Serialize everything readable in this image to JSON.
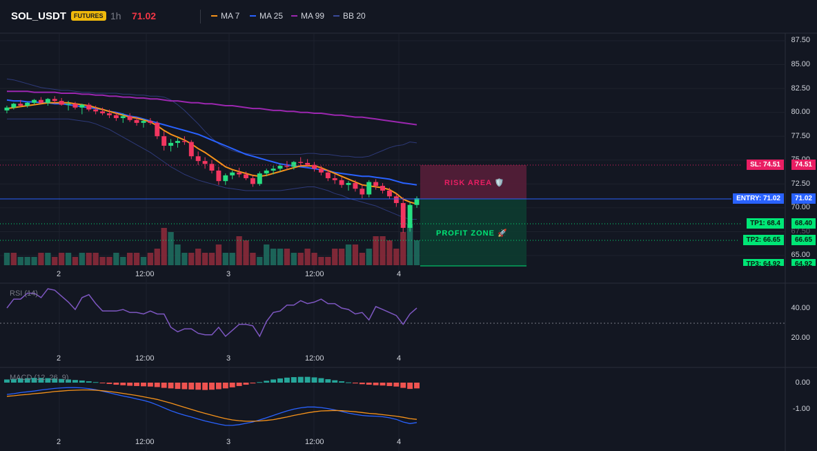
{
  "header": {
    "symbol": "SOL_USDT",
    "badge": "FUTURES",
    "timeframe": "1h",
    "price": "71.02",
    "legend": [
      {
        "label": "MA 7",
        "color": "#f7931a"
      },
      {
        "label": "MA 25",
        "color": "#2962ff"
      },
      {
        "label": "MA 99",
        "color": "#9c27b0"
      },
      {
        "label": "BB 20",
        "color": "#3a4a9a"
      }
    ]
  },
  "price_axis": [
    "87.50",
    "85.00",
    "82.50",
    "80.00",
    "77.50",
    "75.00",
    "72.50",
    "70.00",
    "67.50",
    "65.00"
  ],
  "levels": {
    "sl": {
      "label": "SL: 74.51",
      "value": "74.51",
      "color": "#e91e63"
    },
    "entry": {
      "label": "ENTRY: 71.02",
      "value": "71.02",
      "color": "#2962ff"
    },
    "tp1": {
      "label": "TP1: 68.4",
      "value": "68.40",
      "color": "#00e676"
    },
    "tp2": {
      "label": "TP2: 66.65",
      "value": "66.65",
      "color": "#00e676"
    },
    "tp3": {
      "label": "TP3: 64.92",
      "value": "64.92",
      "color": "#00e676"
    }
  },
  "zones": {
    "risk": "RISK AREA 🛡️",
    "profit": "PROFIT ZONE 🚀"
  },
  "time_axis": [
    "2",
    "12:00",
    "3",
    "12:00",
    "4"
  ],
  "rsi": {
    "title": "RSI (14)",
    "axis": [
      "40.00",
      "20.00"
    ],
    "color": "#7e57c2"
  },
  "macd": {
    "title": "MACD (12, 26, 9)",
    "axis": [
      "0.00",
      "-1.00"
    ]
  },
  "chart_data": {
    "type": "candlestick",
    "candles": [
      [
        80.2,
        80.7,
        79.9,
        80.5
      ],
      [
        80.5,
        81.0,
        80.3,
        80.9
      ],
      [
        80.9,
        81.3,
        80.6,
        80.7
      ],
      [
        80.7,
        81.1,
        80.5,
        81.0
      ],
      [
        81.0,
        81.4,
        80.8,
        81.3
      ],
      [
        81.3,
        81.6,
        80.9,
        81.0
      ],
      [
        81.0,
        81.5,
        80.7,
        81.4
      ],
      [
        81.4,
        81.7,
        80.9,
        81.2
      ],
      [
        81.2,
        81.5,
        80.7,
        80.8
      ],
      [
        80.8,
        81.2,
        80.2,
        80.9
      ],
      [
        80.9,
        81.1,
        80.3,
        80.5
      ],
      [
        80.5,
        80.9,
        79.8,
        80.8
      ],
      [
        80.8,
        81.0,
        80.1,
        80.3
      ],
      [
        80.3,
        80.7,
        79.8,
        80.1
      ],
      [
        80.1,
        80.5,
        79.7,
        79.9
      ],
      [
        79.9,
        80.3,
        79.4,
        79.7
      ],
      [
        79.7,
        80.0,
        79.1,
        79.4
      ],
      [
        79.4,
        79.9,
        78.9,
        79.6
      ],
      [
        79.6,
        79.9,
        79.0,
        79.2
      ],
      [
        79.2,
        79.5,
        78.6,
        78.9
      ],
      [
        78.9,
        79.3,
        78.4,
        79.1
      ],
      [
        79.1,
        79.4,
        78.7,
        78.9
      ],
      [
        78.9,
        79.1,
        77.2,
        77.5
      ],
      [
        77.5,
        78.0,
        76.0,
        76.5
      ],
      [
        76.5,
        77.2,
        75.9,
        76.8
      ],
      [
        76.8,
        77.3,
        76.3,
        77.0
      ],
      [
        77.0,
        77.5,
        76.6,
        76.9
      ],
      [
        76.9,
        77.1,
        75.1,
        75.4
      ],
      [
        75.4,
        75.9,
        74.5,
        74.9
      ],
      [
        74.9,
        75.3,
        74.1,
        74.6
      ],
      [
        74.6,
        75.0,
        73.6,
        73.9
      ],
      [
        73.9,
        74.3,
        72.4,
        72.8
      ],
      [
        72.8,
        73.6,
        72.4,
        73.4
      ],
      [
        73.4,
        73.9,
        73.0,
        73.7
      ],
      [
        73.7,
        74.2,
        73.2,
        73.5
      ],
      [
        73.5,
        73.8,
        72.9,
        73.1
      ],
      [
        73.1,
        73.4,
        72.2,
        72.5
      ],
      [
        72.5,
        73.8,
        72.3,
        73.6
      ],
      [
        73.6,
        74.1,
        73.3,
        73.9
      ],
      [
        73.9,
        74.4,
        73.5,
        74.1
      ],
      [
        74.1,
        74.6,
        73.8,
        74.4
      ],
      [
        74.4,
        74.9,
        74.0,
        74.3
      ],
      [
        74.3,
        74.9,
        74.0,
        74.8
      ],
      [
        74.8,
        75.3,
        74.4,
        74.7
      ],
      [
        74.7,
        75.1,
        74.3,
        74.5
      ],
      [
        74.5,
        74.8,
        73.8,
        74.1
      ],
      [
        74.1,
        74.4,
        73.4,
        73.7
      ],
      [
        73.7,
        74.0,
        72.8,
        73.1
      ],
      [
        73.1,
        73.5,
        72.5,
        72.9
      ],
      [
        72.9,
        73.2,
        72.1,
        72.4
      ],
      [
        72.4,
        72.8,
        71.8,
        72.6
      ],
      [
        72.6,
        72.9,
        71.7,
        72.0
      ],
      [
        72.0,
        72.4,
        71.0,
        71.4
      ],
      [
        71.4,
        72.9,
        71.1,
        72.7
      ],
      [
        72.7,
        73.0,
        71.9,
        72.3
      ],
      [
        72.3,
        72.6,
        71.5,
        71.8
      ],
      [
        71.8,
        72.1,
        70.9,
        71.2
      ],
      [
        71.2,
        71.5,
        70.1,
        70.5
      ],
      [
        70.5,
        71.1,
        67.4,
        67.9
      ],
      [
        67.9,
        70.6,
        67.5,
        70.3
      ],
      [
        70.3,
        71.2,
        70.0,
        71.0
      ]
    ],
    "volume": [
      3,
      3,
      2,
      2,
      2,
      3,
      3,
      2,
      3,
      3,
      2,
      3,
      3,
      3,
      2,
      2,
      3,
      2,
      3,
      3,
      2,
      3,
      4,
      9,
      8,
      5,
      3,
      3,
      4,
      3,
      3,
      5,
      3,
      3,
      7,
      6,
      3,
      2,
      5,
      4,
      4,
      4,
      3,
      3,
      4,
      3,
      2,
      2,
      4,
      4,
      5,
      5,
      3,
      4,
      7,
      7,
      6,
      4,
      8,
      10,
      6
    ],
    "volume_bull": [
      1,
      0,
      1,
      1,
      1,
      0,
      1,
      0,
      0,
      1,
      0,
      1,
      0,
      0,
      0,
      0,
      1,
      1,
      0,
      0,
      1,
      0,
      0,
      0,
      1,
      1,
      1,
      0,
      0,
      0,
      0,
      0,
      1,
      1,
      0,
      0,
      0,
      1,
      1,
      1,
      1,
      0,
      1,
      0,
      0,
      0,
      0,
      0,
      0,
      0,
      1,
      0,
      0,
      1,
      0,
      0,
      0,
      0,
      0,
      1,
      1
    ],
    "ma7": [
      80.4,
      80.5,
      80.6,
      80.7,
      80.8,
      80.9,
      81.0,
      81.0,
      81.0,
      81.0,
      80.9,
      80.8,
      80.7,
      80.5,
      80.3,
      80.1,
      79.9,
      79.7,
      79.5,
      79.4,
      79.2,
      79.0,
      78.6,
      78.1,
      77.7,
      77.4,
      77.1,
      76.7,
      76.2,
      75.8,
      75.3,
      74.8,
      74.3,
      74.0,
      73.8,
      73.6,
      73.4,
      73.3,
      73.4,
      73.6,
      73.8,
      74.0,
      74.2,
      74.4,
      74.4,
      74.4,
      74.2,
      73.9,
      73.6,
      73.3,
      73.0,
      72.7,
      72.4,
      72.3,
      72.2,
      72.1,
      71.9,
      71.5,
      70.9,
      70.6,
      70.4
    ],
    "ma25": [
      81.3,
      81.2,
      81.2,
      81.1,
      81.1,
      81.0,
      81.0,
      80.9,
      80.9,
      80.8,
      80.7,
      80.6,
      80.5,
      80.4,
      80.3,
      80.1,
      80.0,
      79.8,
      79.6,
      79.5,
      79.3,
      79.1,
      78.9,
      78.7,
      78.5,
      78.3,
      78.1,
      77.9,
      77.7,
      77.4,
      77.1,
      76.8,
      76.5,
      76.2,
      75.9,
      75.6,
      75.4,
      75.2,
      75.0,
      74.8,
      74.6,
      74.5,
      74.4,
      74.3,
      74.2,
      74.1,
      74.0,
      73.9,
      73.7,
      73.6,
      73.5,
      73.4,
      73.3,
      73.3,
      73.2,
      73.1,
      73.0,
      72.8,
      72.6,
      72.5,
      72.4
    ],
    "ma99": [
      82.2,
      82.2,
      82.2,
      82.2,
      82.1,
      82.1,
      82.1,
      82.1,
      82.0,
      82.0,
      82.0,
      81.9,
      81.9,
      81.8,
      81.8,
      81.7,
      81.7,
      81.6,
      81.6,
      81.5,
      81.5,
      81.4,
      81.4,
      81.3,
      81.2,
      81.2,
      81.1,
      81.0,
      81.0,
      80.9,
      80.9,
      80.8,
      80.7,
      80.7,
      80.6,
      80.5,
      80.4,
      80.4,
      80.3,
      80.2,
      80.2,
      80.1,
      80.1,
      80.0,
      80.0,
      79.9,
      79.9,
      79.8,
      79.7,
      79.7,
      79.6,
      79.5,
      79.5,
      79.4,
      79.3,
      79.2,
      79.1,
      79.0,
      78.9,
      78.8,
      78.7
    ],
    "bb_upper": [
      83.5,
      83.4,
      83.2,
      83.0,
      82.8,
      82.6,
      82.5,
      82.4,
      82.3,
      82.3,
      82.2,
      82.1,
      82.1,
      82.0,
      82.0,
      82.0,
      82.0,
      81.9,
      81.9,
      81.8,
      81.8,
      81.7,
      81.7,
      81.6,
      81.3,
      80.8,
      80.2,
      79.5,
      78.8,
      78.0,
      77.3,
      76.7,
      76.3,
      76.0,
      75.8,
      75.7,
      75.6,
      75.6,
      75.6,
      75.6,
      75.6,
      75.6,
      75.6,
      75.6,
      75.7,
      75.7,
      75.6,
      75.6,
      75.5,
      75.4,
      75.4,
      75.3,
      75.3,
      75.4,
      75.7,
      76.0,
      76.3,
      76.5,
      76.6,
      76.9,
      76.8
    ],
    "bb_lower": [
      79.3,
      79.3,
      79.3,
      79.3,
      79.3,
      79.3,
      79.3,
      79.3,
      79.3,
      79.3,
      79.2,
      79.1,
      79.0,
      78.8,
      78.5,
      78.2,
      77.8,
      77.4,
      77.0,
      76.6,
      76.2,
      75.8,
      75.3,
      74.8,
      74.3,
      73.9,
      73.5,
      73.2,
      72.9,
      72.7,
      72.5,
      72.3,
      72.1,
      72.0,
      71.9,
      71.8,
      71.8,
      71.8,
      71.8,
      71.8,
      71.8,
      71.9,
      72.0,
      72.1,
      72.2,
      72.2,
      72.0,
      71.8,
      71.5,
      71.3,
      71.0,
      70.8,
      70.6,
      70.4,
      70.2,
      69.9,
      69.6,
      69.3,
      69.0,
      68.8,
      68.8
    ],
    "rsi": [
      40,
      46,
      46,
      50,
      50,
      47,
      53,
      52,
      48,
      44,
      39,
      47,
      49,
      43,
      38,
      38,
      38,
      39,
      37,
      37,
      36,
      38,
      36,
      36,
      27,
      24,
      26,
      26,
      23,
      22,
      22,
      27,
      21,
      25,
      29,
      29,
      28,
      21,
      31,
      37,
      38,
      42,
      42,
      45,
      43,
      44,
      46,
      43,
      43,
      40,
      39,
      36,
      37,
      32,
      41,
      39,
      37,
      35,
      29,
      36,
      40
    ],
    "macd_hist": [
      0.12,
      0.14,
      0.16,
      0.17,
      0.18,
      0.18,
      0.17,
      0.16,
      0.14,
      0.12,
      0.1,
      0.08,
      0.05,
      0.02,
      -0.02,
      -0.05,
      -0.08,
      -0.1,
      -0.12,
      -0.13,
      -0.14,
      -0.15,
      -0.17,
      -0.2,
      -0.22,
      -0.24,
      -0.25,
      -0.26,
      -0.27,
      -0.28,
      -0.27,
      -0.25,
      -0.22,
      -0.18,
      -0.13,
      -0.08,
      -0.03,
      0.02,
      0.07,
      0.12,
      0.16,
      0.19,
      0.21,
      0.22,
      0.22,
      0.2,
      0.17,
      0.13,
      0.09,
      0.05,
      0.01,
      -0.03,
      -0.06,
      -0.08,
      -0.1,
      -0.11,
      -0.13,
      -0.15,
      -0.2,
      -0.24,
      -0.22
    ],
    "macd_line": [
      -0.45,
      -0.42,
      -0.38,
      -0.35,
      -0.32,
      -0.28,
      -0.25,
      -0.22,
      -0.2,
      -0.19,
      -0.19,
      -0.2,
      -0.23,
      -0.27,
      -0.33,
      -0.39,
      -0.45,
      -0.51,
      -0.56,
      -0.62,
      -0.68,
      -0.75,
      -0.85,
      -0.96,
      -1.07,
      -1.16,
      -1.24,
      -1.31,
      -1.39,
      -1.46,
      -1.52,
      -1.58,
      -1.63,
      -1.63,
      -1.6,
      -1.55,
      -1.5,
      -1.42,
      -1.34,
      -1.25,
      -1.16,
      -1.08,
      -1.01,
      -0.96,
      -0.93,
      -0.93,
      -0.95,
      -0.99,
      -1.04,
      -1.1,
      -1.16,
      -1.21,
      -1.25,
      -1.27,
      -1.28,
      -1.3,
      -1.34,
      -1.4,
      -1.5,
      -1.56,
      -1.52
    ],
    "signal_line": [
      -0.52,
      -0.5,
      -0.47,
      -0.45,
      -0.42,
      -0.4,
      -0.37,
      -0.34,
      -0.32,
      -0.3,
      -0.29,
      -0.28,
      -0.28,
      -0.29,
      -0.31,
      -0.34,
      -0.37,
      -0.41,
      -0.45,
      -0.49,
      -0.54,
      -0.59,
      -0.64,
      -0.71,
      -0.78,
      -0.86,
      -0.94,
      -1.02,
      -1.1,
      -1.17,
      -1.24,
      -1.31,
      -1.37,
      -1.42,
      -1.45,
      -1.47,
      -1.47,
      -1.46,
      -1.44,
      -1.41,
      -1.36,
      -1.31,
      -1.25,
      -1.2,
      -1.15,
      -1.11,
      -1.08,
      -1.07,
      -1.06,
      -1.07,
      -1.09,
      -1.11,
      -1.14,
      -1.17,
      -1.19,
      -1.22,
      -1.25,
      -1.28,
      -1.32,
      -1.37,
      -1.4
    ]
  }
}
